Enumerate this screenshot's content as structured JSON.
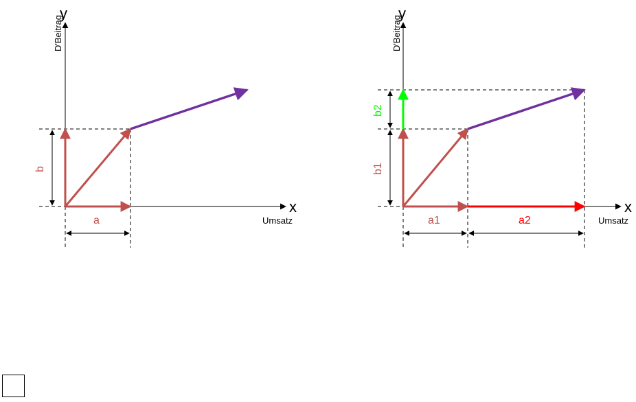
{
  "colors": {
    "axis": "#000000",
    "component": "#c0504d",
    "resultant": "#7030a0",
    "a2_component": "#ff0000",
    "b2_component": "#00ff00",
    "guide": "#000000"
  },
  "left_diagram": {
    "y_axis_letter": "y",
    "y_axis_name": "D'Beitrag",
    "x_axis_letter": "x",
    "x_axis_name": "Umsatz",
    "label_a": "a",
    "label_b": "b"
  },
  "right_diagram": {
    "y_axis_letter": "y",
    "y_axis_name": "D'Beitrag",
    "x_axis_letter": "x",
    "x_axis_name": "Umsatz",
    "label_a1": "a1",
    "label_a2": "a2",
    "label_b1": "b1",
    "label_b2": "b2"
  }
}
